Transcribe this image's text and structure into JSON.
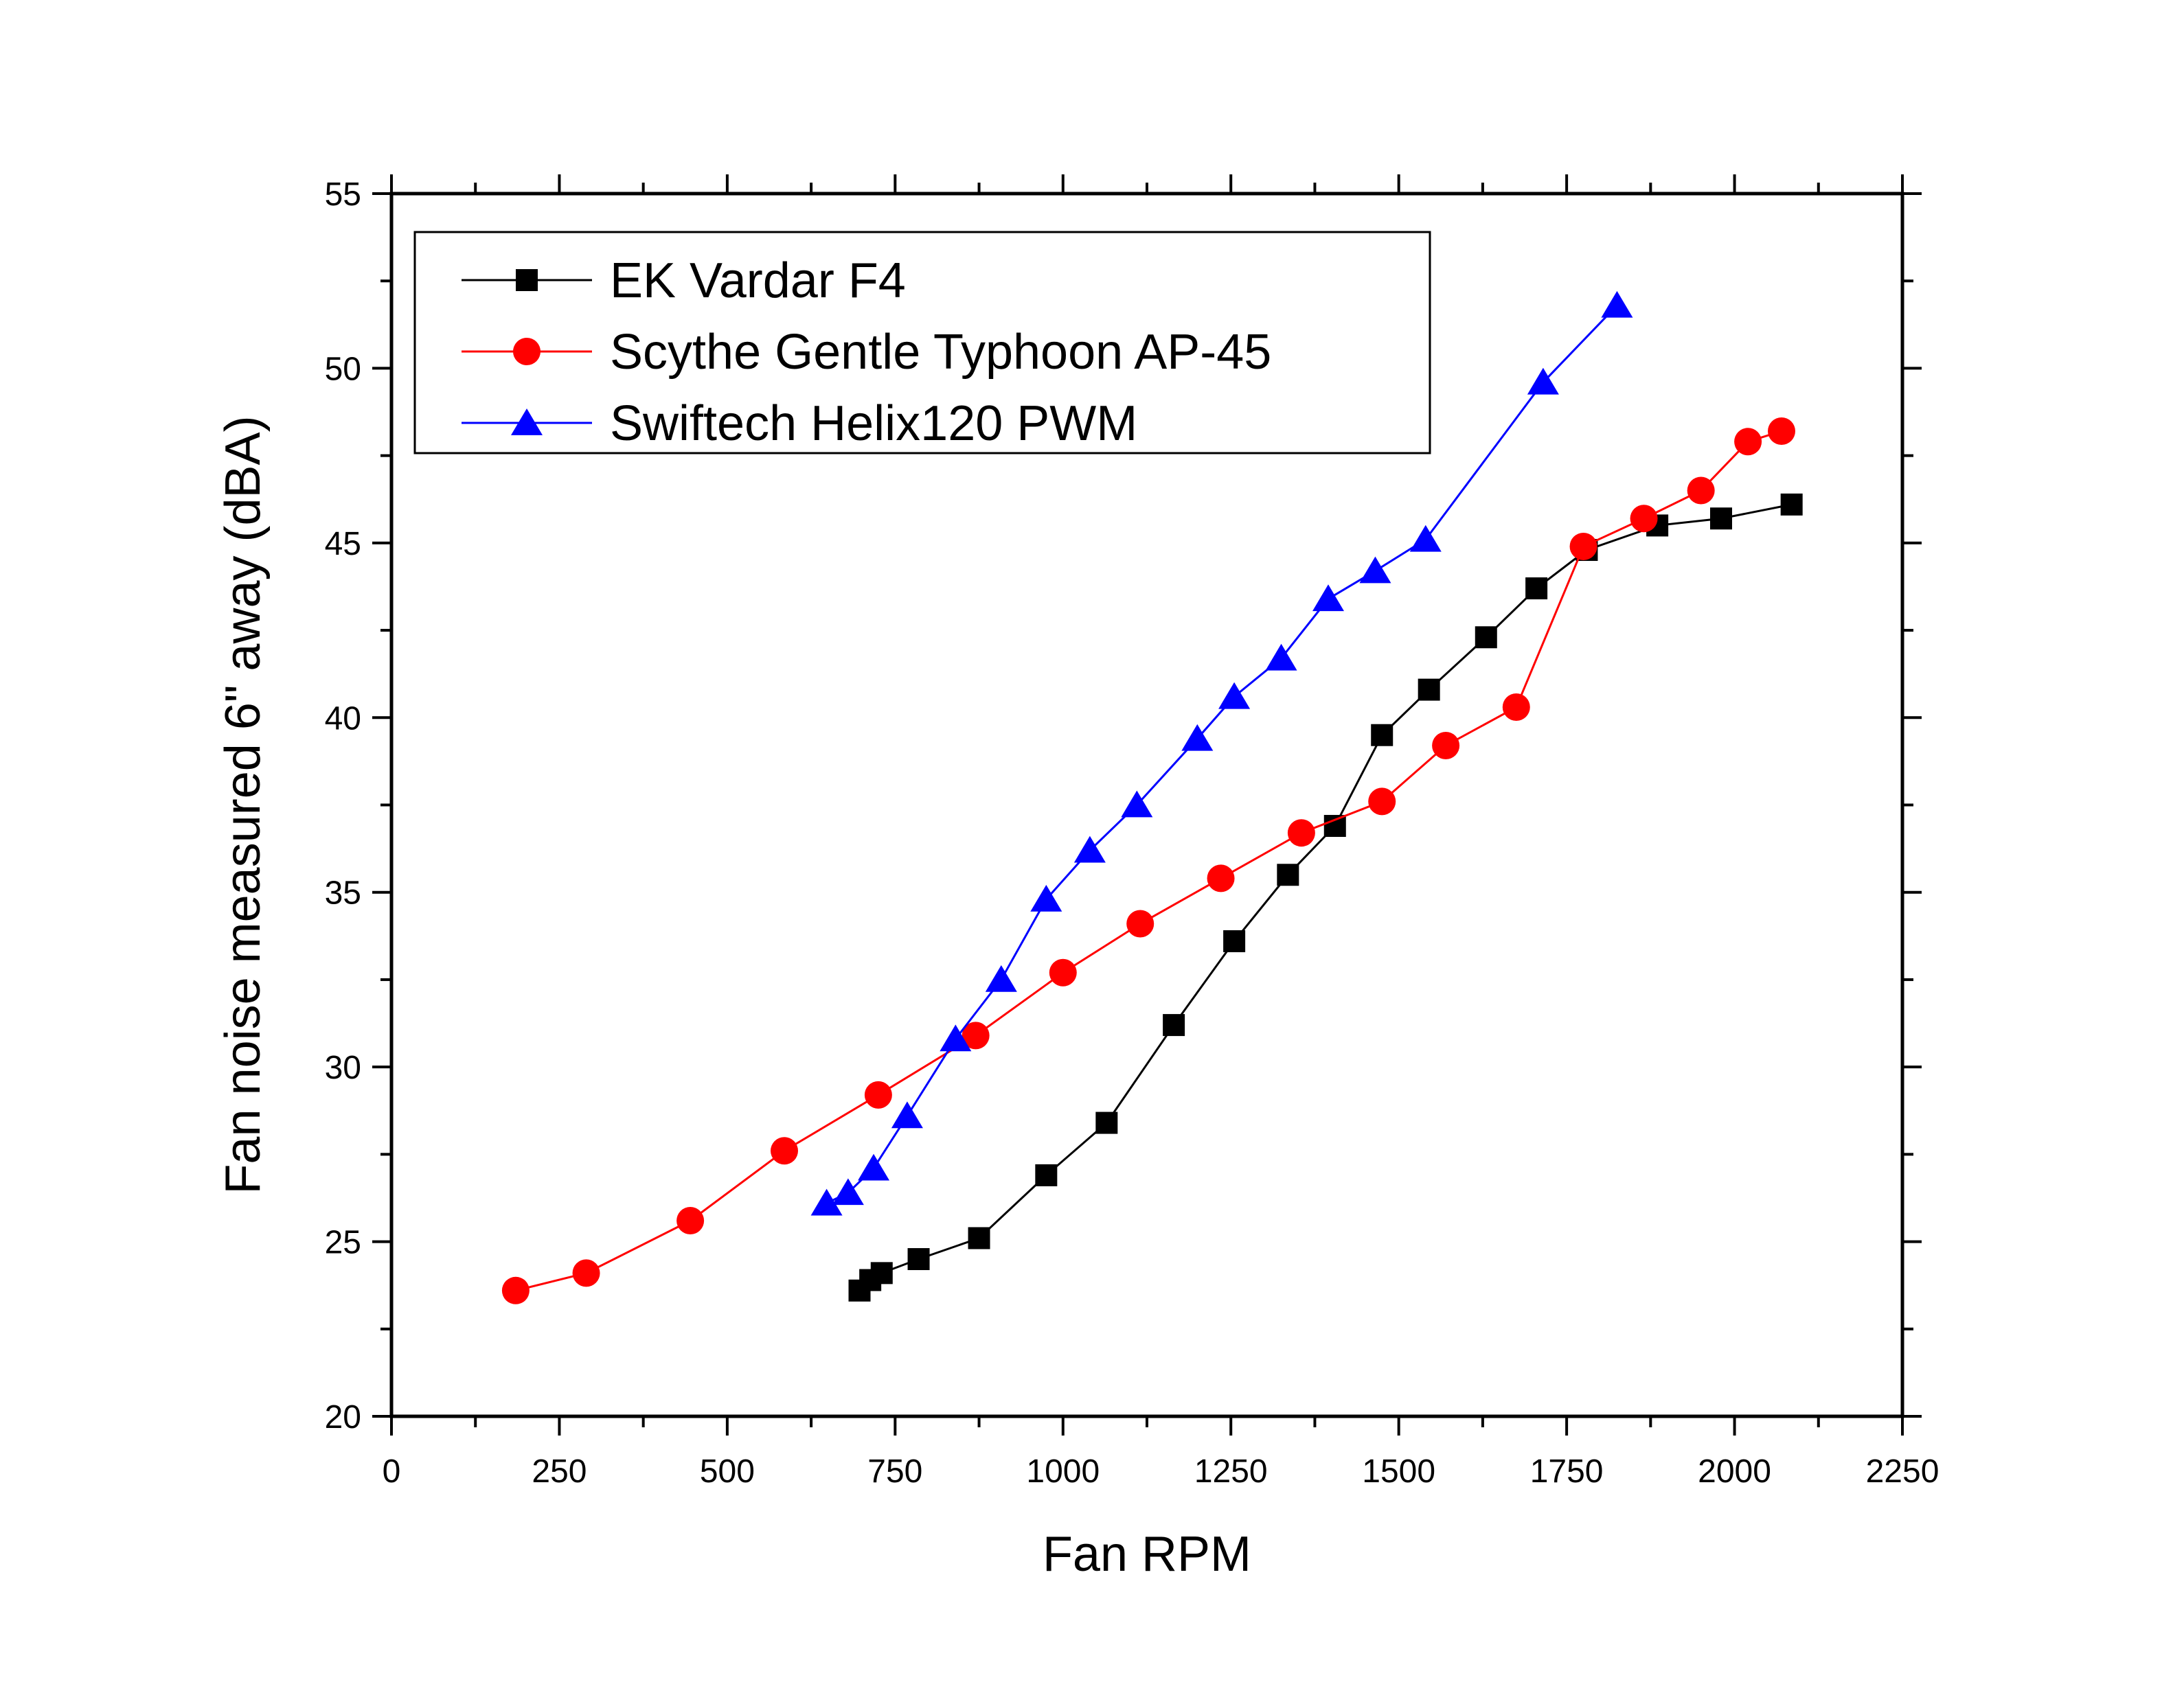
{
  "chart_data": {
    "type": "line",
    "title": "",
    "xlabel": "Fan RPM",
    "ylabel": "Fan noise measured 6\" away (dBA)",
    "xlim": [
      0,
      2250
    ],
    "ylim": [
      20,
      55
    ],
    "xticks": [
      0,
      250,
      500,
      750,
      1000,
      1250,
      1500,
      1750,
      2000,
      2250
    ],
    "xtick_labels": [
      "0",
      "250",
      "500",
      "750",
      "1000",
      "1250",
      "1500",
      "1750",
      "2000",
      "2250"
    ],
    "yticks": [
      20,
      25,
      30,
      35,
      40,
      45,
      50,
      55
    ],
    "ytick_labels": [
      "20",
      "25",
      "30",
      "35",
      "40",
      "45",
      "50",
      "55"
    ],
    "grid": false,
    "legend_position": "top-left",
    "series": [
      {
        "name": "EK Vardar F4",
        "color": "#000000",
        "marker": "square",
        "points": [
          [
            697,
            23.6
          ],
          [
            713,
            23.9
          ],
          [
            730,
            24.1
          ],
          [
            785,
            24.5
          ],
          [
            875,
            25.1
          ],
          [
            975,
            26.9
          ],
          [
            1065,
            28.4
          ],
          [
            1165,
            31.2
          ],
          [
            1255,
            33.6
          ],
          [
            1335,
            35.5
          ],
          [
            1405,
            36.9
          ],
          [
            1475,
            39.5
          ],
          [
            1545,
            40.8
          ],
          [
            1630,
            42.3
          ],
          [
            1705,
            43.7
          ],
          [
            1780,
            44.8
          ],
          [
            1885,
            45.5
          ],
          [
            1980,
            45.7
          ],
          [
            2085,
            46.1
          ]
        ]
      },
      {
        "name": "Scythe Gentle Typhoon AP-45",
        "color": "#ff0000",
        "marker": "circle",
        "points": [
          [
            185,
            23.6
          ],
          [
            290,
            24.1
          ],
          [
            445,
            25.6
          ],
          [
            585,
            27.6
          ],
          [
            725,
            29.2
          ],
          [
            870,
            30.9
          ],
          [
            1000,
            32.7
          ],
          [
            1115,
            34.1
          ],
          [
            1235,
            35.4
          ],
          [
            1355,
            36.7
          ],
          [
            1475,
            37.6
          ],
          [
            1570,
            39.2
          ],
          [
            1675,
            40.3
          ],
          [
            1775,
            44.9
          ],
          [
            1865,
            45.7
          ],
          [
            1950,
            46.5
          ],
          [
            2020,
            47.9
          ],
          [
            2070,
            48.2
          ]
        ]
      },
      {
        "name": "Swiftech Helix120 PWM",
        "color": "#0000ff",
        "marker": "triangle",
        "points": [
          [
            648,
            26.1
          ],
          [
            680,
            26.4
          ],
          [
            718,
            27.1
          ],
          [
            768,
            28.6
          ],
          [
            840,
            30.8
          ],
          [
            908,
            32.5
          ],
          [
            975,
            34.8
          ],
          [
            1040,
            36.2
          ],
          [
            1110,
            37.5
          ],
          [
            1200,
            39.4
          ],
          [
            1255,
            40.6
          ],
          [
            1325,
            41.7
          ],
          [
            1395,
            43.4
          ],
          [
            1465,
            44.2
          ],
          [
            1540,
            45.1
          ],
          [
            1715,
            49.6
          ],
          [
            1825,
            51.8
          ]
        ]
      }
    ]
  }
}
